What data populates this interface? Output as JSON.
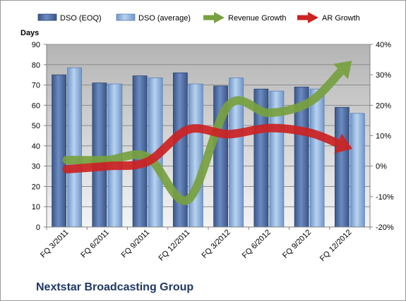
{
  "chart_data": {
    "type": "bar",
    "company": "Nextstar Broadcasting Group",
    "left_axis_title": "Days",
    "categories": [
      "FQ 3/2011",
      "FQ 6/2011",
      "FQ 9/2011",
      "FQ 12/2011",
      "FQ 3/2012",
      "FQ 6/2012",
      "FQ 9/2012",
      "FQ 12/2012"
    ],
    "series": [
      {
        "name": "DSO (EOQ)",
        "kind": "bar",
        "axis": "left",
        "color": "#4f6da3",
        "values": [
          75,
          71,
          74.5,
          76,
          69.5,
          68,
          69,
          59
        ]
      },
      {
        "name": "DSO (average)",
        "kind": "bar",
        "axis": "left",
        "color": "#8fb4e3",
        "values": [
          78.5,
          70.5,
          73.5,
          70.5,
          73.5,
          67,
          68,
          56
        ]
      },
      {
        "name": "Revenue Growth",
        "kind": "arrow",
        "axis": "right",
        "color": "#77a13f",
        "values": [
          2,
          2,
          3,
          -11,
          20,
          17.5,
          21,
          34
        ]
      },
      {
        "name": "AR Growth",
        "kind": "arrow",
        "axis": "right",
        "color": "#cc2222",
        "values": [
          -1,
          0,
          1.5,
          12,
          10.5,
          12.5,
          11,
          6
        ]
      }
    ],
    "y_left": {
      "min": 0,
      "max": 90,
      "ticks": [
        "0",
        "10",
        "20",
        "30",
        "40",
        "50",
        "60",
        "70",
        "80",
        "90"
      ]
    },
    "y_right": {
      "min": -20,
      "max": 40,
      "ticks": [
        "-20%",
        "-10%",
        "0%",
        "10%",
        "20%",
        "30%",
        "40%"
      ]
    },
    "grid": true,
    "legend_position": "top"
  }
}
